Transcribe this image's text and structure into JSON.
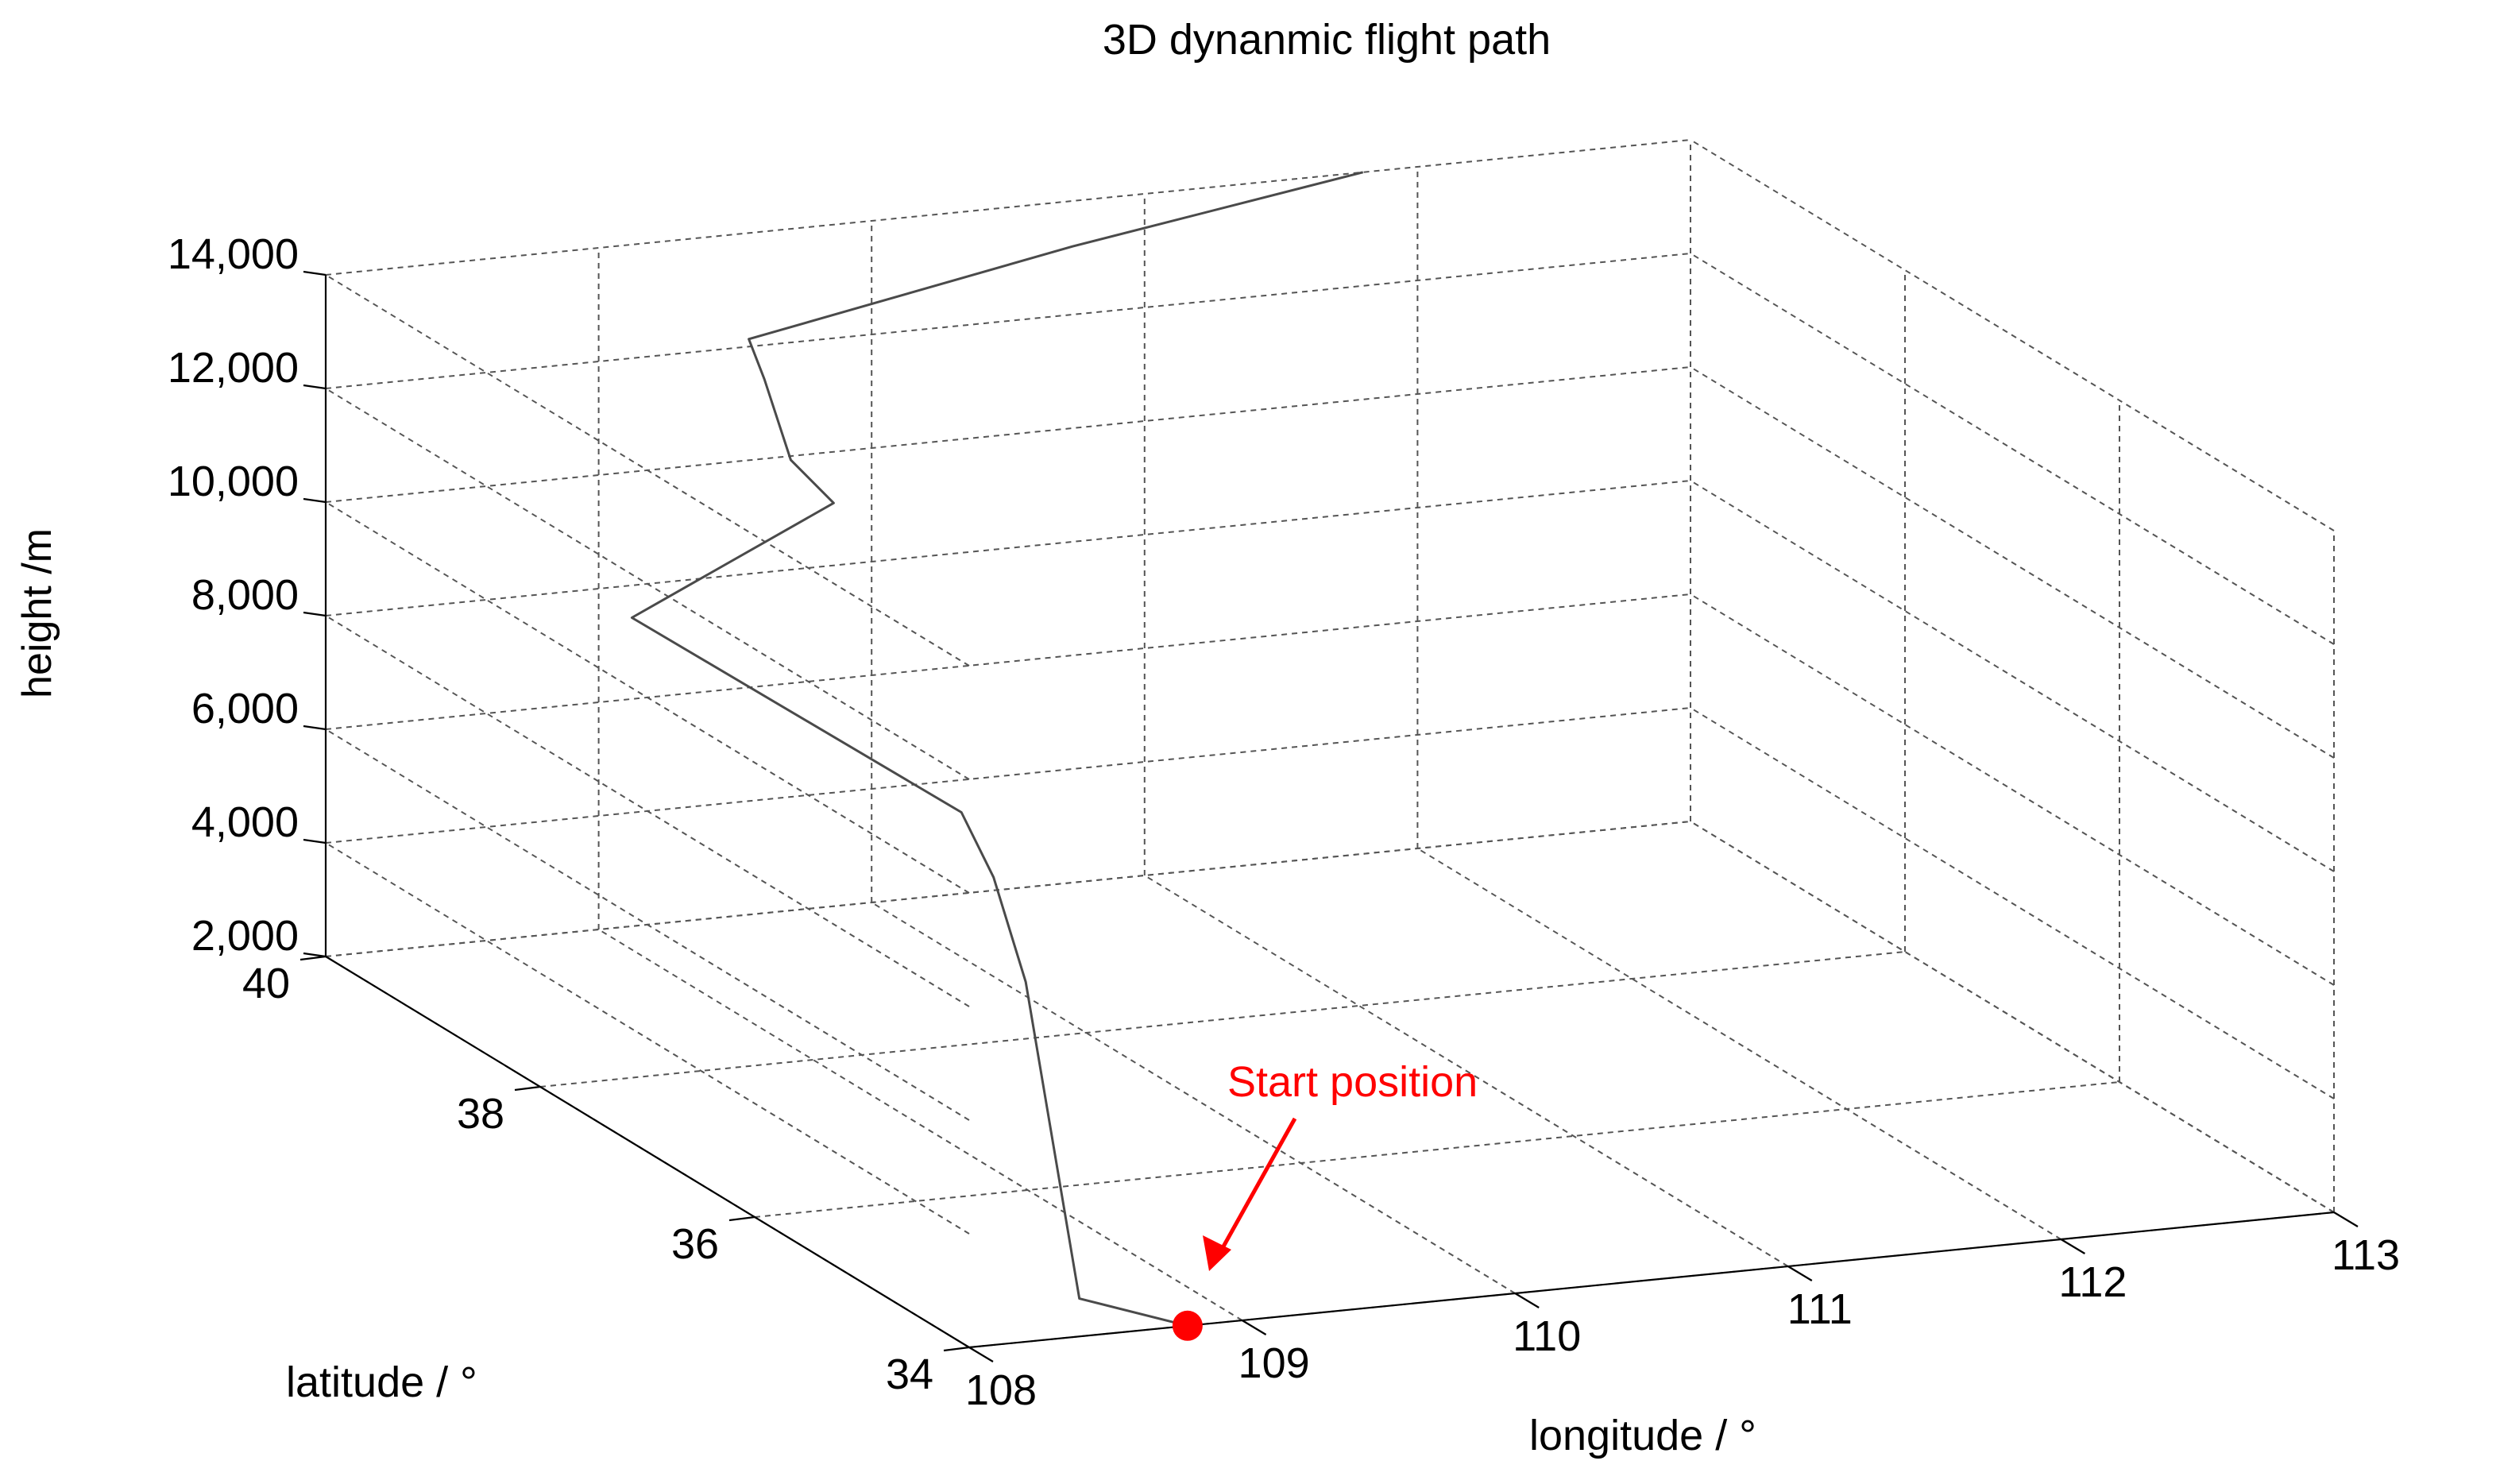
{
  "chart_data": {
    "type": "line",
    "projection": "3d",
    "title": "3D dynanmic flight path",
    "xlabel": "longitude / °",
    "ylabel": "latitude / °",
    "zlabel": "height /m",
    "xlim": [
      108,
      113
    ],
    "ylim": [
      34,
      40
    ],
    "zlim": [
      2000,
      14000
    ],
    "x_ticks": [
      "108",
      "109",
      "110",
      "111",
      "112",
      "113"
    ],
    "y_ticks": [
      "34",
      "36",
      "38",
      "40"
    ],
    "z_ticks": [
      "2,000",
      "4,000",
      "6,000",
      "8,000",
      "10,000",
      "12,000",
      "14,000"
    ],
    "grid": true,
    "series": [
      {
        "points": [
          {
            "x": 108.8,
            "y": 34.0,
            "z": 2000
          },
          {
            "x": 108.6,
            "y": 34.5,
            "z": 2000
          },
          {
            "x": 108.6,
            "y": 34.6,
            "z": 3000
          },
          {
            "x": 108.6,
            "y": 34.8,
            "z": 5000
          },
          {
            "x": 108.6,
            "y": 35.0,
            "z": 7000
          },
          {
            "x": 108.6,
            "y": 35.3,
            "z": 8500
          },
          {
            "x": 108.6,
            "y": 35.6,
            "z": 9300
          },
          {
            "x": 108.1,
            "y": 37.4,
            "z": 10900
          },
          {
            "x": 108.8,
            "y": 37.3,
            "z": 12700
          },
          {
            "x": 108.8,
            "y": 37.7,
            "z": 13000
          },
          {
            "x": 108.9,
            "y": 38.2,
            "z": 13800
          },
          {
            "x": 109.0,
            "y": 38.6,
            "z": 14000
          },
          {
            "x": 110.5,
            "y": 39.4,
            "z": 14000
          },
          {
            "x": 111.8,
            "y": 40.0,
            "z": 14000
          }
        ]
      }
    ],
    "annotations": [
      {
        "text": "Start position",
        "color": "#ff0000",
        "x": 108.8,
        "y": 34.0,
        "z": 2000
      }
    ]
  }
}
